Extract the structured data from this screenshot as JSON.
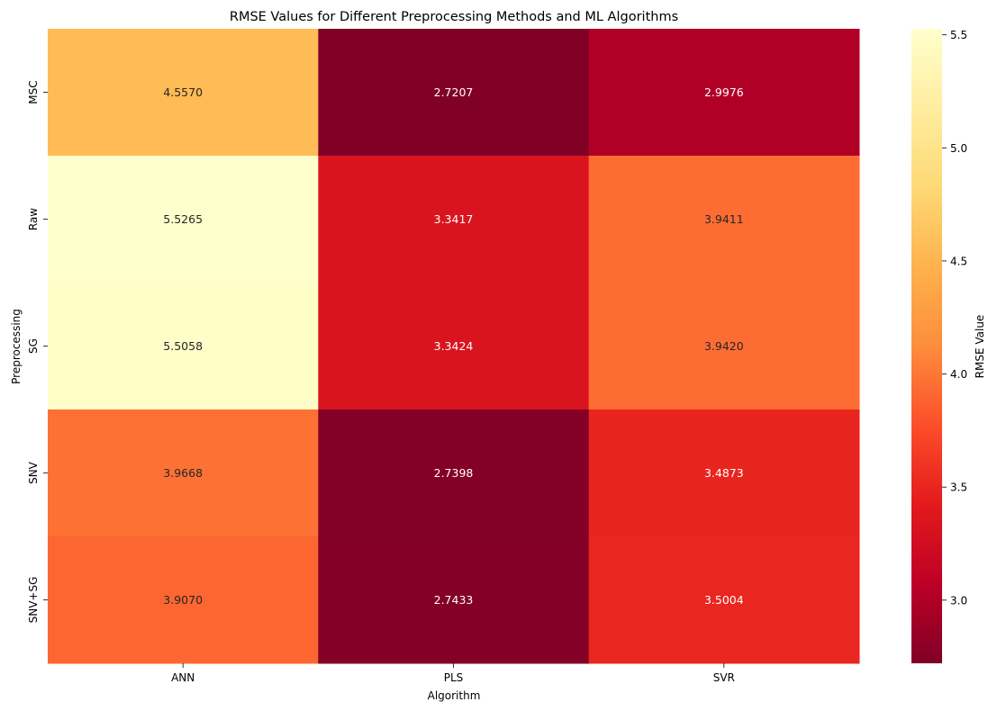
{
  "chart_data": {
    "type": "heatmap",
    "title": "RMSE Values for Different Preprocessing Methods and ML Algorithms",
    "xlabel": "Algorithm",
    "ylabel": "Preprocessing",
    "x_categories": [
      "ANN",
      "PLS",
      "SVR"
    ],
    "y_categories": [
      "MSC",
      "Raw",
      "SG",
      "SNV",
      "SNV+SG"
    ],
    "values": [
      [
        4.557,
        2.7207,
        2.9976
      ],
      [
        5.5265,
        3.3417,
        3.9411
      ],
      [
        5.5058,
        3.3424,
        3.942
      ],
      [
        3.9668,
        2.7398,
        3.4873
      ],
      [
        3.907,
        2.7433,
        3.5004
      ]
    ],
    "value_labels": [
      [
        "4.5570",
        "2.7207",
        "2.9976"
      ],
      [
        "5.5265",
        "3.3417",
        "3.9411"
      ],
      [
        "5.5058",
        "3.3424",
        "3.9420"
      ],
      [
        "3.9668",
        "2.7398",
        "3.4873"
      ],
      [
        "3.9070",
        "2.7433",
        "3.5004"
      ]
    ],
    "colormap": "YlOrRd_r",
    "colormap_stops": [
      "#800026",
      "#bd0026",
      "#e31a1c",
      "#fc4e2a",
      "#fd8d3c",
      "#feb24c",
      "#fed976",
      "#ffeda0",
      "#ffffcc"
    ],
    "colorbar": {
      "label": "RMSE Value",
      "vmin": 2.7207,
      "vmax": 5.5265,
      "ticks": [
        3.0,
        3.5,
        4.0,
        4.5,
        5.0,
        5.5
      ],
      "tick_labels": [
        "3.0",
        "3.5",
        "4.0",
        "4.5",
        "5.0",
        "5.5"
      ]
    }
  }
}
